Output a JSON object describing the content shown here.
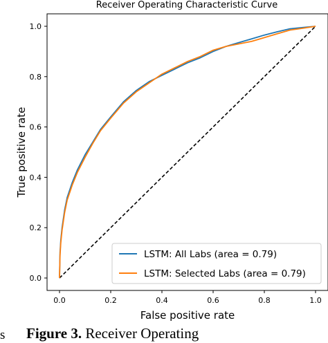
{
  "chart_data": {
    "type": "line",
    "title": "Receiver Operating Characteristic Curve",
    "xlabel": "False positive rate",
    "ylabel": "True positive rate",
    "xlim": [
      0,
      1
    ],
    "ylim": [
      0,
      1
    ],
    "xticks": [
      "0.0",
      "0.2",
      "0.4",
      "0.6",
      "0.8",
      "1.0"
    ],
    "yticks": [
      "0.0",
      "0.2",
      "0.4",
      "0.6",
      "0.8",
      "1.0"
    ],
    "grid": false,
    "legend_position": "lower-right",
    "series": [
      {
        "name": "LSTM: All Labs (area = 0.79)",
        "color": "#1f77b4",
        "x": [
          0,
          0.002,
          0.005,
          0.01,
          0.02,
          0.03,
          0.05,
          0.07,
          0.1,
          0.13,
          0.16,
          0.2,
          0.25,
          0.3,
          0.35,
          0.4,
          0.45,
          0.5,
          0.55,
          0.6,
          0.65,
          0.7,
          0.75,
          0.8,
          0.85,
          0.9,
          0.95,
          1.0
        ],
        "y": [
          0,
          0.1,
          0.15,
          0.2,
          0.27,
          0.32,
          0.38,
          0.43,
          0.49,
          0.54,
          0.59,
          0.64,
          0.7,
          0.745,
          0.78,
          0.805,
          0.83,
          0.855,
          0.875,
          0.9,
          0.92,
          0.935,
          0.95,
          0.965,
          0.978,
          0.99,
          0.995,
          1.0
        ]
      },
      {
        "name": "LSTM: Selected Labs (area = 0.79)",
        "color": "#ff7f0e",
        "x": [
          0,
          0.002,
          0.005,
          0.01,
          0.02,
          0.03,
          0.05,
          0.07,
          0.1,
          0.13,
          0.16,
          0.2,
          0.25,
          0.3,
          0.35,
          0.4,
          0.45,
          0.5,
          0.55,
          0.6,
          0.65,
          0.7,
          0.75,
          0.8,
          0.85,
          0.9,
          0.95,
          1.0
        ],
        "y": [
          0,
          0.09,
          0.14,
          0.19,
          0.26,
          0.31,
          0.37,
          0.42,
          0.48,
          0.535,
          0.585,
          0.635,
          0.695,
          0.74,
          0.775,
          0.81,
          0.835,
          0.86,
          0.88,
          0.905,
          0.92,
          0.93,
          0.94,
          0.955,
          0.97,
          0.985,
          0.992,
          1.0
        ]
      }
    ],
    "reference_line": {
      "x": [
        0,
        1
      ],
      "y": [
        0,
        1
      ],
      "style": "dashed",
      "color": "#000000"
    }
  },
  "caption": {
    "left_fragment": "s",
    "label": "Figure 3.",
    "text": "Receiver Operating"
  }
}
